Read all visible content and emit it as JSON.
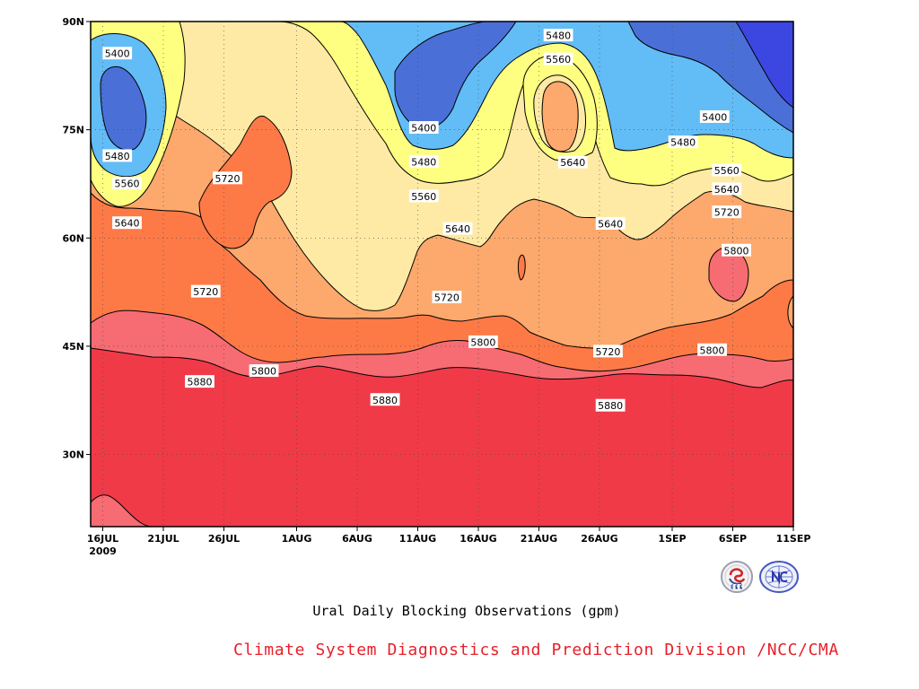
{
  "chart_data": {
    "type": "filled-contour",
    "title": "Ural Daily Blocking Observations (gpm)",
    "credit": "Climate System Diagnostics and Prediction Division /NCC/CMA",
    "x_axis": {
      "ticks": [
        "16JUL",
        "21JUL",
        "26JUL",
        "1AUG",
        "6AUG",
        "11AUG",
        "16AUG",
        "21AUG",
        "26AUG",
        "1SEP",
        "6SEP",
        "11SEP"
      ],
      "tick_days": [
        0,
        5,
        10,
        16,
        21,
        26,
        31,
        36,
        41,
        47,
        52,
        57
      ],
      "year": "2009",
      "range_days": [
        -1,
        57
      ]
    },
    "y_axis": {
      "ticks": [
        "90N",
        "75N",
        "60N",
        "45N",
        "30N"
      ],
      "tick_values": [
        90,
        75,
        60,
        45,
        30
      ],
      "range": [
        20,
        90
      ]
    },
    "grid": "dotted",
    "levels": [
      5400,
      5480,
      5560,
      5640,
      5720,
      5800,
      5880
    ],
    "fill_colors": {
      "lt5400": "#4a70d8",
      "5400-5480": "#62bcf6",
      "5480-5560": "#feff80",
      "5560-5640": "#feeaa4",
      "5640-5720": "#fda86c",
      "5720-5800": "#fd7a47",
      "5800-5880": "#f76b73",
      "ge5880": "#f03a48",
      "deep": "#3c46e0"
    },
    "contour_labels": [
      {
        "text": "5400",
        "day": 1.2,
        "lat": 85.5
      },
      {
        "text": "5480",
        "day": 1.2,
        "lat": 71.3
      },
      {
        "text": "5560",
        "day": 2.0,
        "lat": 67.5
      },
      {
        "text": "5640",
        "day": 2.0,
        "lat": 62.0
      },
      {
        "text": "5720",
        "day": 10.3,
        "lat": 68.2
      },
      {
        "text": "5720",
        "day": 8.5,
        "lat": 52.5
      },
      {
        "text": "5880",
        "day": 8.0,
        "lat": 40.0
      },
      {
        "text": "5800",
        "day": 13.3,
        "lat": 41.5
      },
      {
        "text": "5880",
        "day": 23.3,
        "lat": 37.5
      },
      {
        "text": "5400",
        "day": 26.5,
        "lat": 75.2
      },
      {
        "text": "5480",
        "day": 26.5,
        "lat": 70.5
      },
      {
        "text": "5560",
        "day": 26.5,
        "lat": 65.7
      },
      {
        "text": "5640",
        "day": 29.3,
        "lat": 61.2
      },
      {
        "text": "5720",
        "day": 28.4,
        "lat": 51.7
      },
      {
        "text": "5800",
        "day": 31.4,
        "lat": 45.5
      },
      {
        "text": "5480",
        "day": 37.6,
        "lat": 88.0
      },
      {
        "text": "5560",
        "day": 37.6,
        "lat": 84.7
      },
      {
        "text": "5640",
        "day": 38.8,
        "lat": 70.4
      },
      {
        "text": "5640",
        "day": 41.9,
        "lat": 61.9
      },
      {
        "text": "5720",
        "day": 41.7,
        "lat": 44.2
      },
      {
        "text": "5880",
        "day": 41.9,
        "lat": 36.7
      },
      {
        "text": "5480",
        "day": 47.9,
        "lat": 73.2
      },
      {
        "text": "5400",
        "day": 50.5,
        "lat": 76.7
      },
      {
        "text": "5560",
        "day": 51.5,
        "lat": 69.3
      },
      {
        "text": "5640",
        "day": 51.5,
        "lat": 66.7
      },
      {
        "text": "5720",
        "day": 51.5,
        "lat": 63.5
      },
      {
        "text": "5800",
        "day": 52.3,
        "lat": 58.2
      },
      {
        "text": "5800",
        "day": 50.3,
        "lat": 44.4
      }
    ]
  }
}
